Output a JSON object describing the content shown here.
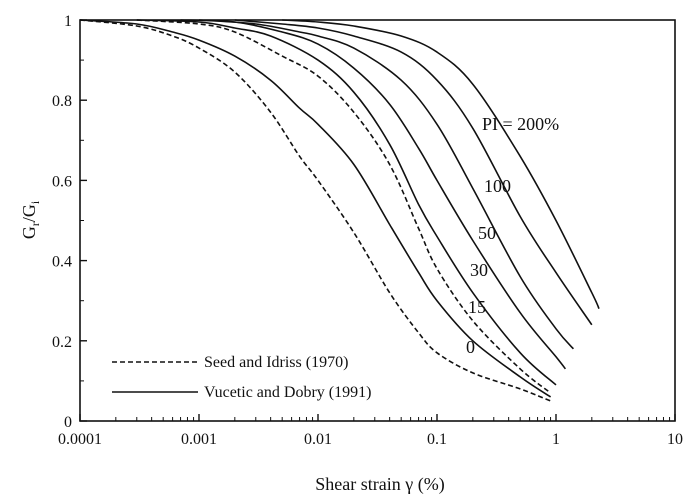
{
  "chart_data": {
    "type": "line",
    "xlabel": "Shear strain γ (%)",
    "ylabel_main": "G",
    "ylabel_sub_num": "r",
    "ylabel_sub_den": "i",
    "ylabel_sep": "/G",
    "x_scale": "log",
    "xlim": [
      0.0001,
      10
    ],
    "ylim": [
      0,
      1
    ],
    "x_ticks": [
      {
        "value": 0.0001,
        "label": "0.0001"
      },
      {
        "value": 0.001,
        "label": "0.001"
      },
      {
        "value": 0.01,
        "label": "0.01"
      },
      {
        "value": 0.1,
        "label": "0.1"
      },
      {
        "value": 1,
        "label": "1"
      },
      {
        "value": 10,
        "label": "10"
      }
    ],
    "y_ticks": [
      {
        "value": 0,
        "label": "0"
      },
      {
        "value": 0.2,
        "label": "0.2"
      },
      {
        "value": 0.4,
        "label": "0.4"
      },
      {
        "value": 0.6,
        "label": "0.6"
      },
      {
        "value": 0.8,
        "label": "0.8"
      },
      {
        "value": 1,
        "label": "1"
      }
    ],
    "grid": false,
    "legend": {
      "placement": "bottom-left",
      "entries": [
        {
          "label": "Seed and Idriss (1970)",
          "style": "dashed"
        },
        {
          "label": "Vucetic and Dobry (1991)",
          "style": "solid"
        }
      ]
    },
    "series": [
      {
        "style": "dashed",
        "points": [
          [
            0.0001,
            1.0
          ],
          [
            0.0003,
            0.985
          ],
          [
            0.0006,
            0.96
          ],
          [
            0.001,
            0.93
          ],
          [
            0.002,
            0.87
          ],
          [
            0.004,
            0.77
          ],
          [
            0.007,
            0.66
          ],
          [
            0.01,
            0.6
          ],
          [
            0.02,
            0.47
          ],
          [
            0.04,
            0.32
          ],
          [
            0.07,
            0.22
          ],
          [
            0.1,
            0.17
          ],
          [
            0.2,
            0.12
          ],
          [
            0.5,
            0.08
          ],
          [
            0.9,
            0.05
          ]
        ]
      },
      {
        "style": "dashed",
        "points": [
          [
            0.0003,
            1.0
          ],
          [
            0.001,
            0.99
          ],
          [
            0.002,
            0.97
          ],
          [
            0.005,
            0.91
          ],
          [
            0.01,
            0.86
          ],
          [
            0.02,
            0.77
          ],
          [
            0.04,
            0.64
          ],
          [
            0.07,
            0.48
          ],
          [
            0.1,
            0.38
          ],
          [
            0.2,
            0.25
          ],
          [
            0.5,
            0.13
          ],
          [
            0.9,
            0.07
          ]
        ]
      },
      {
        "style": "solid",
        "name_label": "0",
        "points": [
          [
            0.0001,
            1.0
          ],
          [
            0.0003,
            0.99
          ],
          [
            0.0006,
            0.97
          ],
          [
            0.001,
            0.95
          ],
          [
            0.002,
            0.91
          ],
          [
            0.004,
            0.85
          ],
          [
            0.007,
            0.78
          ],
          [
            0.01,
            0.74
          ],
          [
            0.02,
            0.64
          ],
          [
            0.04,
            0.49
          ],
          [
            0.07,
            0.37
          ],
          [
            0.1,
            0.3
          ],
          [
            0.2,
            0.2
          ],
          [
            0.5,
            0.11
          ],
          [
            0.9,
            0.06
          ]
        ]
      },
      {
        "style": "solid",
        "name_label": "15",
        "points": [
          [
            0.0003,
            1.0
          ],
          [
            0.001,
            0.995
          ],
          [
            0.002,
            0.98
          ],
          [
            0.004,
            0.96
          ],
          [
            0.01,
            0.9
          ],
          [
            0.02,
            0.82
          ],
          [
            0.04,
            0.69
          ],
          [
            0.07,
            0.54
          ],
          [
            0.1,
            0.46
          ],
          [
            0.2,
            0.32
          ],
          [
            0.5,
            0.17
          ],
          [
            1.0,
            0.09
          ]
        ]
      },
      {
        "style": "solid",
        "name_label": "30",
        "points": [
          [
            0.0007,
            1.0
          ],
          [
            0.002,
            0.995
          ],
          [
            0.005,
            0.97
          ],
          [
            0.01,
            0.94
          ],
          [
            0.02,
            0.88
          ],
          [
            0.04,
            0.79
          ],
          [
            0.07,
            0.68
          ],
          [
            0.1,
            0.6
          ],
          [
            0.2,
            0.45
          ],
          [
            0.5,
            0.27
          ],
          [
            1.0,
            0.16
          ],
          [
            1.2,
            0.13
          ]
        ]
      },
      {
        "style": "solid",
        "name_label": "50",
        "points": [
          [
            0.001,
            1.0
          ],
          [
            0.003,
            0.99
          ],
          [
            0.007,
            0.97
          ],
          [
            0.01,
            0.96
          ],
          [
            0.02,
            0.93
          ],
          [
            0.05,
            0.85
          ],
          [
            0.1,
            0.74
          ],
          [
            0.2,
            0.58
          ],
          [
            0.5,
            0.36
          ],
          [
            1.0,
            0.23
          ],
          [
            1.4,
            0.18
          ]
        ]
      },
      {
        "style": "solid",
        "name_label": "100",
        "points": [
          [
            0.002,
            1.0
          ],
          [
            0.005,
            0.99
          ],
          [
            0.01,
            0.98
          ],
          [
            0.02,
            0.96
          ],
          [
            0.05,
            0.92
          ],
          [
            0.1,
            0.85
          ],
          [
            0.2,
            0.73
          ],
          [
            0.5,
            0.51
          ],
          [
            1.0,
            0.37
          ],
          [
            2.0,
            0.24
          ]
        ]
      },
      {
        "style": "solid",
        "name_label": "PI = 200%",
        "points": [
          [
            0.005,
            1.0
          ],
          [
            0.01,
            0.995
          ],
          [
            0.02,
            0.985
          ],
          [
            0.05,
            0.96
          ],
          [
            0.1,
            0.92
          ],
          [
            0.2,
            0.84
          ],
          [
            0.5,
            0.66
          ],
          [
            1.0,
            0.5
          ],
          [
            2.0,
            0.32
          ],
          [
            2.3,
            0.28
          ]
        ]
      }
    ]
  }
}
